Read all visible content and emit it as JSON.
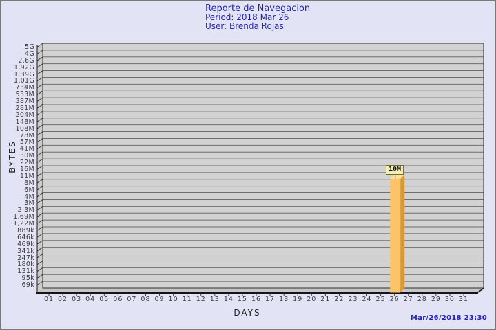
{
  "header": {
    "title": "Reporte de Navegacion",
    "period_line": "Period: 2018 Mar 26",
    "user_line": "User: Brenda Rojas",
    "text_color": "#2626a5"
  },
  "footer": {
    "timestamp": "Mar/26/2018 23:30",
    "text_color": "#2323bb"
  },
  "chart_data": {
    "type": "bar",
    "title": "Reporte de Navegacion",
    "xlabel": "DAYS",
    "ylabel": "BYTES",
    "y_scale": "log",
    "grid": true,
    "x_tick_labels": [
      "01",
      "02",
      "03",
      "04",
      "05",
      "06",
      "07",
      "08",
      "09",
      "10",
      "11",
      "12",
      "13",
      "14",
      "15",
      "16",
      "17",
      "18",
      "19",
      "20",
      "21",
      "22",
      "23",
      "24",
      "25",
      "26",
      "27",
      "28",
      "29",
      "30",
      "31"
    ],
    "y_tick_labels": [
      "5G",
      "4G",
      "2,6G",
      "1,92G",
      "1,39G",
      "1,01G",
      "734M",
      "533M",
      "387M",
      "281M",
      "204M",
      "148M",
      "108M",
      "78M",
      "57M",
      "41M",
      "30M",
      "22M",
      "16M",
      "11M",
      "8M",
      "6M",
      "4M",
      "3M",
      "2,3M",
      "1,69M",
      "1,22M",
      "889k",
      "646k",
      "469k",
      "341k",
      "247k",
      "180k",
      "131k",
      "95k",
      "69k"
    ],
    "bars": [
      {
        "day": "26",
        "label": "10M"
      }
    ],
    "colors": {
      "plot_bg": "#d2d2d2",
      "wall": "#cccccc",
      "floor": "#c6c6c6",
      "grid_line": "#6e6e6e",
      "axis_line": "#151515",
      "tick_line": "#3f3f3f",
      "bar_front": "#fcc469",
      "bar_side": "#d69939",
      "bar_top": "#ffdf9c",
      "flag_bg": "#f2eeb4",
      "flag_border": "#70702c",
      "page_bg": "#e3e3f6"
    }
  }
}
